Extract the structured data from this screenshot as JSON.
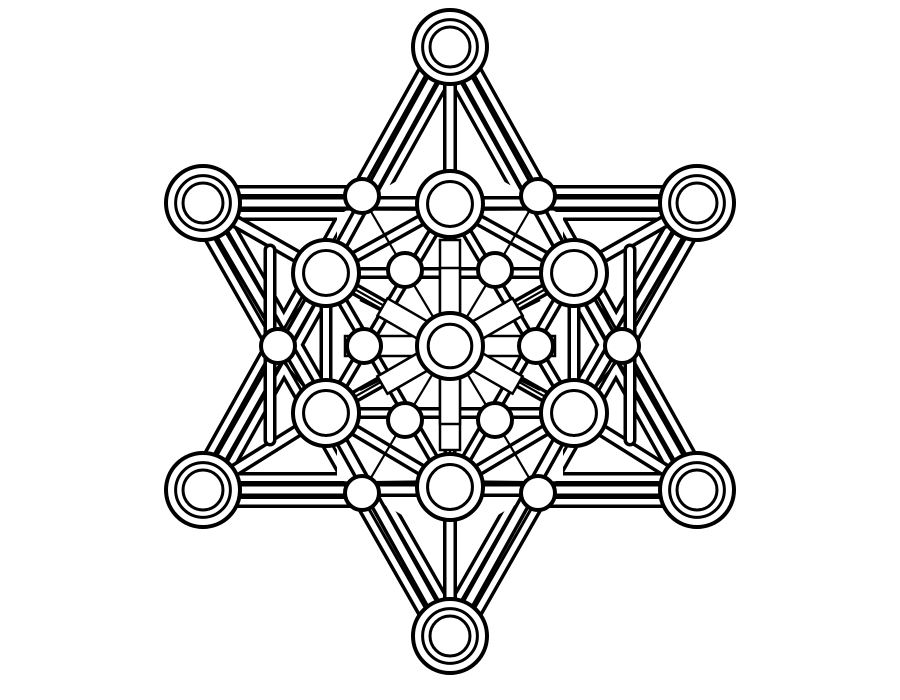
{
  "artwork": {
    "subject": "",
    "style": "black line-art coloring page",
    "stroke_color": "#000000",
    "fill_color": "#ffffff",
    "background_color": "#ffffff"
  }
}
